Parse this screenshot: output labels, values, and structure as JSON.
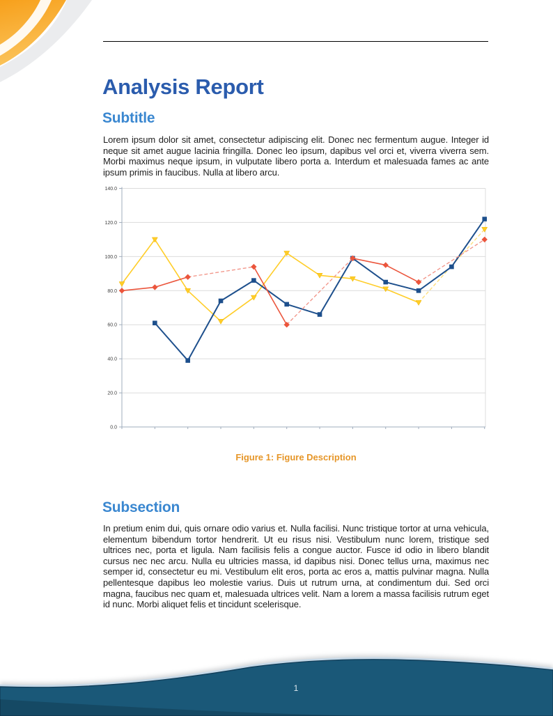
{
  "page": {
    "title": "Analysis Report",
    "page_number": "1"
  },
  "sections": [
    {
      "heading": "Subtitle",
      "body": "Lorem ipsum dolor sit amet, consectetur adipiscing elit. Donec nec fermentum augue. Integer id neque sit amet augue lacinia fringilla. Donec leo ipsum, dapibus vel orci et, viverra viverra sem. Morbi maximus neque ipsum, in vulputate libero porta a. Interdum et malesuada fames ac ante ipsum primis in faucibus. Nulla at libero arcu."
    },
    {
      "heading": "Subsection",
      "body": "In pretium enim dui, quis ornare odio varius et. Nulla facilisi. Nunc tristique tortor at urna vehicula, elementum bibendum tortor hendrerit. Ut eu risus nisi. Vestibulum nunc lorem, tristique sed ultrices nec, porta et ligula. Nam facilisis felis a congue auctor. Fusce id odio in libero blandit cursus nec nec arcu. Nulla eu ultricies massa, id dapibus nisi. Donec tellus urna, maximus nec semper id, consectetur eu mi. Vestibulum elit eros, porta ac eros a, mattis pulvinar magna. Nulla pellentesque dapibus leo molestie varius. Duis ut rutrum urna, at condimentum dui. Sed orci magna, faucibus nec quam et, malesuada ultrices velit. Nam a lorem a massa facilisis rutrum eget id nunc. Morbi aliquet felis et tincidunt scelerisque."
    }
  ],
  "figure": {
    "caption": "Figure 1: Figure Description"
  },
  "colors": {
    "title_blue": "#2B5CAD",
    "heading_blue": "#3A87D0",
    "caption_orange": "#E69628",
    "footer_blue": "#1A5878",
    "corner_orange": "#F7A01B",
    "grid_gray": "#DCDCDC",
    "axis_gray": "#9FACBC"
  },
  "chart_data": {
    "type": "line",
    "title": "",
    "xlabel": "",
    "ylabel": "",
    "x": [
      1,
      2,
      3,
      4,
      5,
      6,
      7,
      8,
      9,
      10,
      11,
      12
    ],
    "x_tick_labels": [],
    "ylim": [
      0,
      140
    ],
    "ytick_step": 20,
    "ytick_labels": [
      "0.0",
      "20.0",
      "40.0",
      "60.0",
      "80.0",
      "100.0",
      "120.0",
      "140.0"
    ],
    "grid": "horizontal",
    "legend": "none",
    "missing_data_style": "dashed interpolation between neighbors",
    "series": [
      {
        "name": "yellow-series",
        "color": "#FFCD28",
        "dash_color": "#FFDE7A",
        "marker": "triangle-down",
        "line_width": 1.6,
        "values": [
          84,
          110,
          80,
          62,
          76,
          102,
          89,
          87,
          81,
          73,
          null,
          116
        ]
      },
      {
        "name": "blue-series",
        "color": "#1D4F8C",
        "dash_color": "#7FA3C8",
        "marker": "square",
        "line_width": 2,
        "values": [
          null,
          61,
          39,
          74,
          86,
          72,
          66,
          99,
          85,
          80,
          94,
          122
        ]
      },
      {
        "name": "red-series",
        "color": "#EB553C",
        "dash_color": "#F2968A",
        "marker": "diamond",
        "line_width": 1.6,
        "values": [
          80,
          82,
          88,
          null,
          94,
          60,
          null,
          99,
          95,
          85,
          null,
          110
        ]
      }
    ]
  }
}
